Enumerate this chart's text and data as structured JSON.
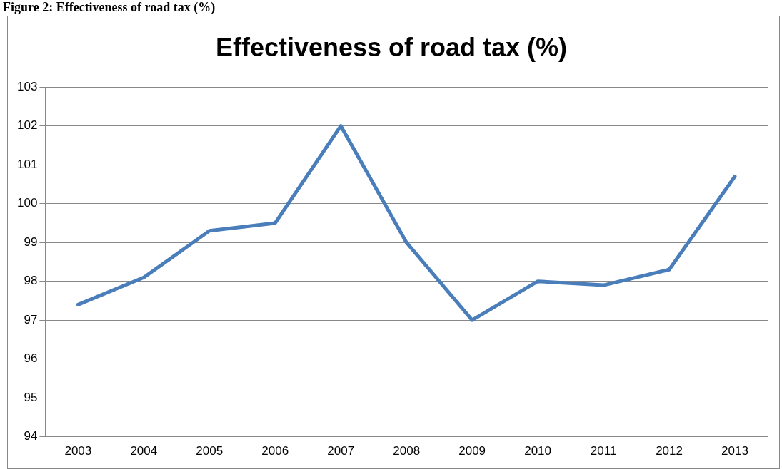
{
  "chart_data": {
    "type": "line",
    "title": "Effectiveness of road tax (%)",
    "annotations": [
      "Figure 2: Effectiveness of road tax (%)"
    ],
    "categories": [
      "2003",
      "2004",
      "2005",
      "2006",
      "2007",
      "2008",
      "2009",
      "2010",
      "2011",
      "2012",
      "2013"
    ],
    "series": [
      {
        "color": "#4a7ebb",
        "values": [
          97.4,
          98.1,
          99.3,
          99.5,
          102,
          99,
          97,
          98,
          97.9,
          98.3,
          100.7
        ]
      }
    ],
    "ylim": [
      94,
      103
    ],
    "yticks": [
      94,
      95,
      96,
      97,
      98,
      99,
      100,
      101,
      102,
      103
    ],
    "grid": "y",
    "legend": false,
    "marker": "none",
    "line_style": "solid"
  }
}
